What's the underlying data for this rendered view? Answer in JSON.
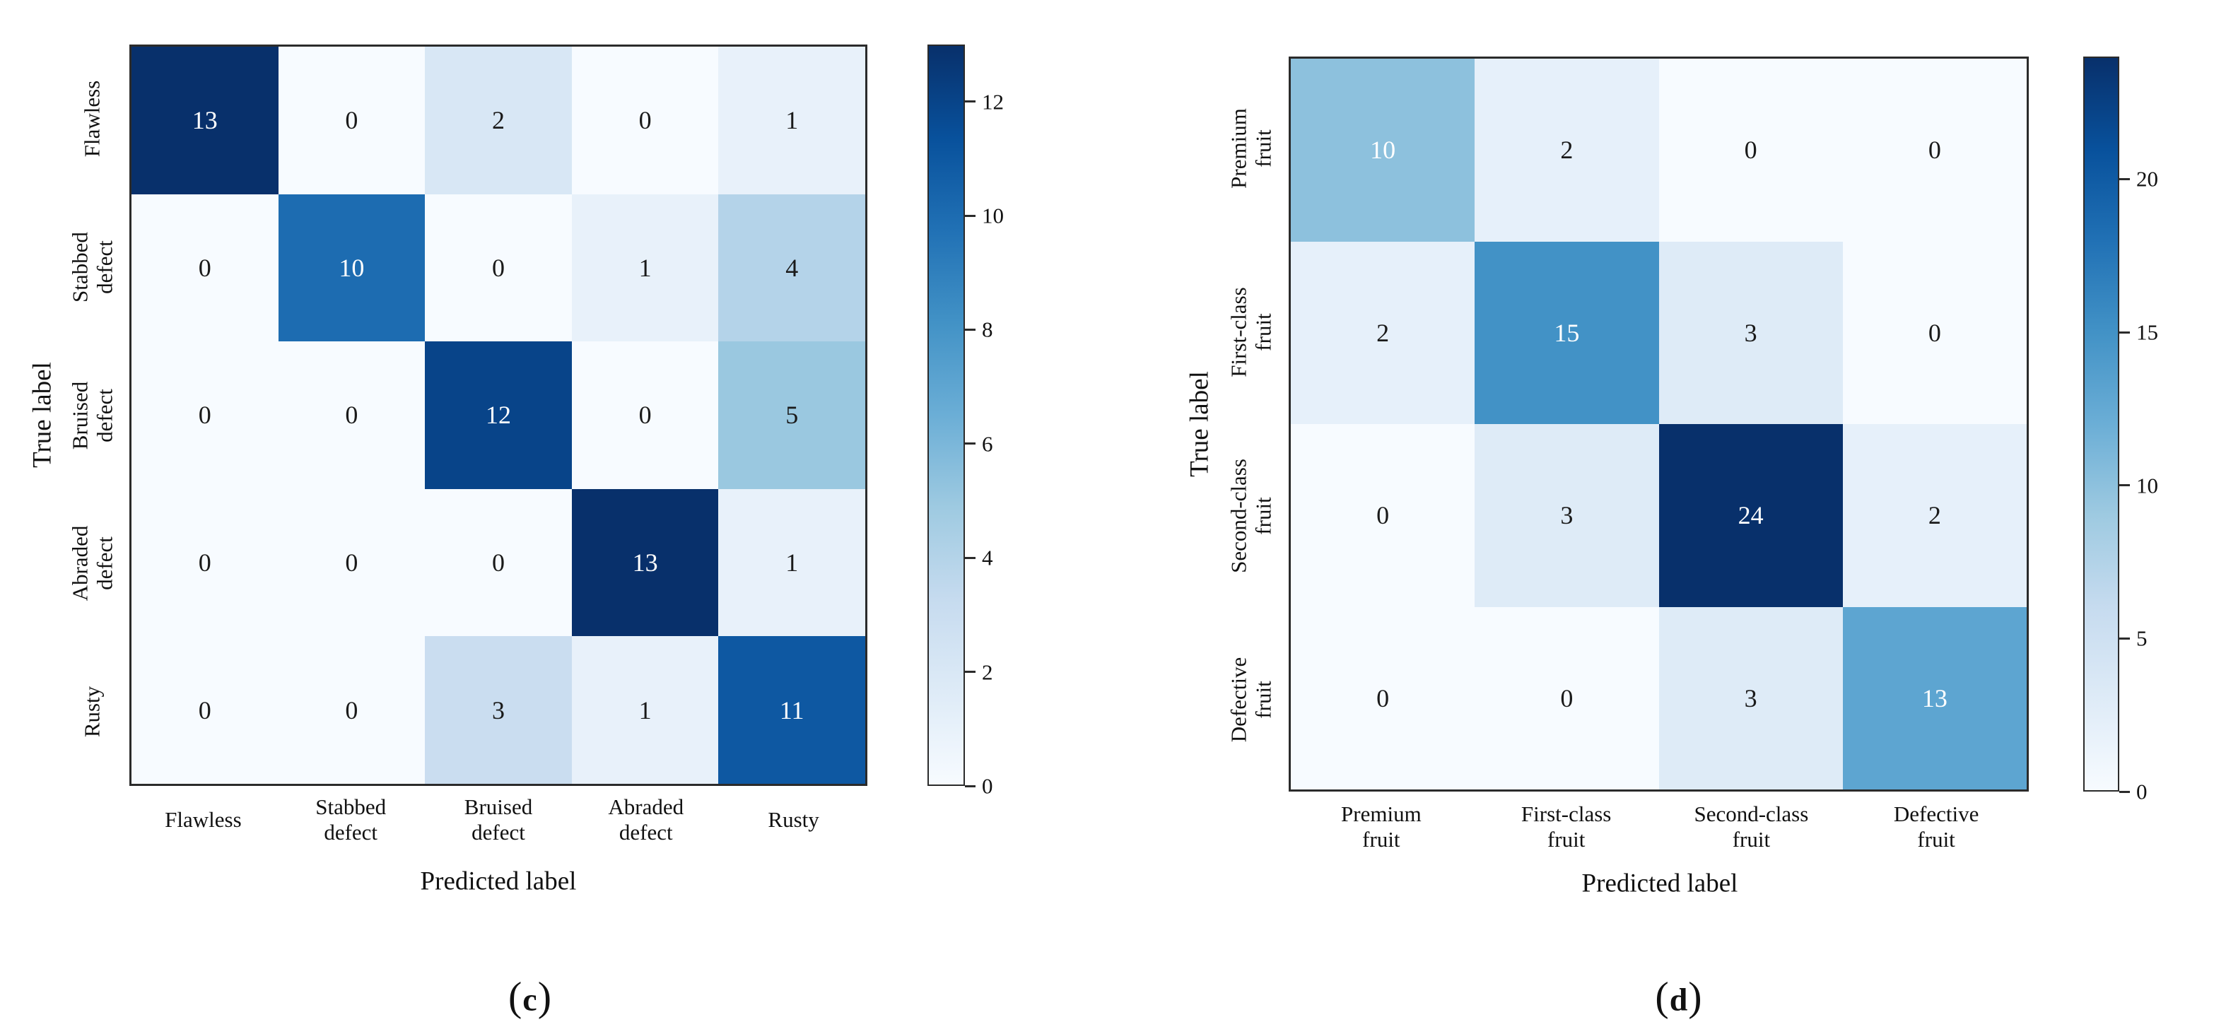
{
  "figure": {
    "background": "#ffffff",
    "captions": {
      "left": "(c)",
      "right": "(d)"
    }
  },
  "colors": {
    "colormap": "Blues",
    "blues_anchors": [
      "#f7fbff",
      "#deebf7",
      "#c6dbef",
      "#9ecae1",
      "#6baed6",
      "#4292c6",
      "#2171b5",
      "#08519c",
      "#08306b"
    ],
    "axis_border": "#2b2b2b",
    "label_text": "#111111",
    "cell_text_dark": "#1a1a1a",
    "cell_text_light": "#ffffff"
  },
  "chart_data": [
    {
      "type": "heatmap",
      "title": "",
      "xlabel": "Predicted label",
      "ylabel": "True label",
      "caption": "(c)",
      "row_labels": [
        [
          "Flawless"
        ],
        [
          "Stabbed",
          "defect"
        ],
        [
          "Bruised",
          "defect"
        ],
        [
          "Abraded",
          "defect"
        ],
        [
          "Rusty"
        ]
      ],
      "col_labels": [
        [
          "Flawless"
        ],
        [
          "Stabbed",
          "defect"
        ],
        [
          "Bruised",
          "defect"
        ],
        [
          "Abraded",
          "defect"
        ],
        [
          "Rusty"
        ]
      ],
      "values": [
        [
          13,
          0,
          2,
          0,
          1
        ],
        [
          0,
          10,
          0,
          1,
          4
        ],
        [
          0,
          0,
          12,
          0,
          5
        ],
        [
          0,
          0,
          0,
          13,
          1
        ],
        [
          0,
          0,
          3,
          1,
          11
        ]
      ],
      "vmin": 0,
      "vmax": 13,
      "colorbar_ticks": [
        0,
        2,
        4,
        6,
        8,
        10,
        12
      ],
      "white_text_min": 6.5,
      "legend_position": "right",
      "grid": false
    },
    {
      "type": "heatmap",
      "title": "",
      "xlabel": "Predicted label",
      "ylabel": "True label",
      "caption": "(d)",
      "row_labels": [
        [
          "Premium",
          "fruit"
        ],
        [
          "First-class",
          "fruit"
        ],
        [
          "Second-class",
          "fruit"
        ],
        [
          "Defective",
          "fruit"
        ]
      ],
      "col_labels": [
        [
          "Premium",
          "fruit"
        ],
        [
          "First-class",
          "fruit"
        ],
        [
          "Second-class",
          "fruit"
        ],
        [
          "Defective",
          "fruit"
        ]
      ],
      "values": [
        [
          10,
          2,
          0,
          0
        ],
        [
          2,
          15,
          3,
          0
        ],
        [
          0,
          3,
          24,
          2
        ],
        [
          0,
          0,
          3,
          13
        ]
      ],
      "vmin": 0,
      "vmax": 24,
      "colorbar_ticks": [
        0,
        5,
        10,
        15,
        20
      ],
      "white_text_min": 5,
      "legend_position": "right",
      "grid": false
    }
  ]
}
